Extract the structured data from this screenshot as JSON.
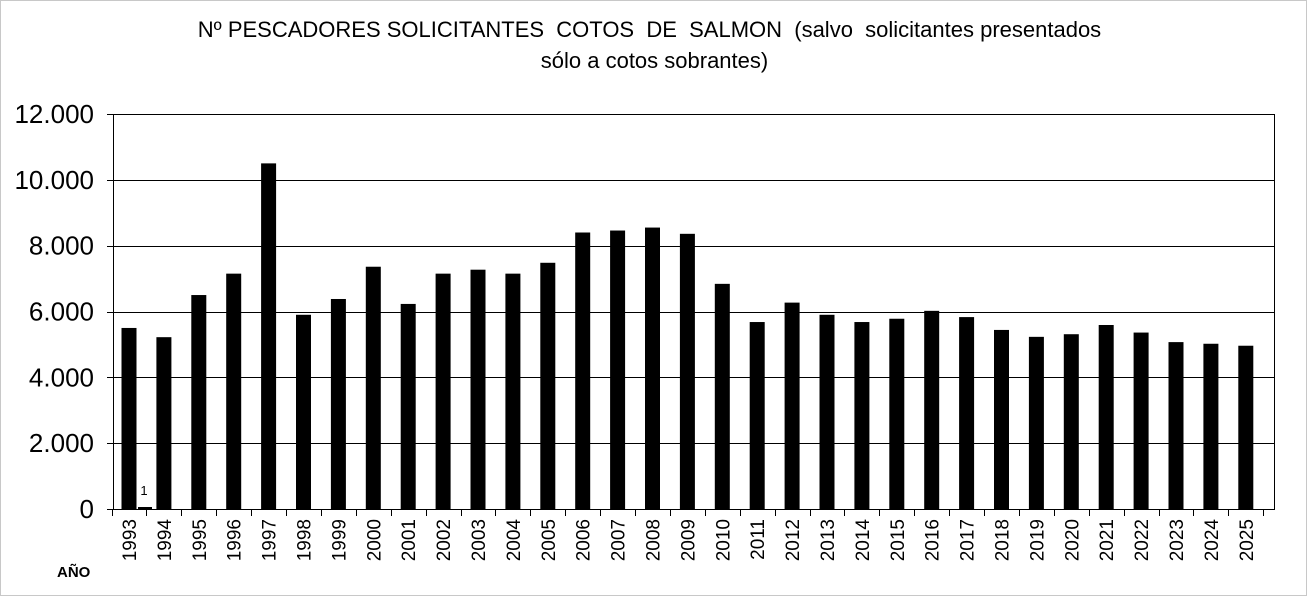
{
  "chart_data": {
    "type": "bar",
    "title_line1": "Nº PESCADORES SOLICITANTES  COTOS  DE  SALMON  (salvo  solicitantes presentados",
    "title_line2": "sólo a cotos sobrantes)",
    "xlabel": "AÑO",
    "ylabel": "",
    "ylim": [
      0,
      12000
    ],
    "y_ticks": [
      0,
      2000,
      4000,
      6000,
      8000,
      10000,
      12000
    ],
    "y_tick_labels": [
      "0",
      "2.000",
      "4.000",
      "6.000",
      "8.000",
      "10.000",
      "12.000"
    ],
    "grid": true,
    "legend": "none",
    "bar_color": "#000000",
    "categories": [
      "1993",
      "1994",
      "1995",
      "1996",
      "1997",
      "1998",
      "1999",
      "2000",
      "2001",
      "2002",
      "2003",
      "2004",
      "2005",
      "2006",
      "2007",
      "2008",
      "2009",
      "2010",
      "2011",
      "2012",
      "2013",
      "2014",
      "2015",
      "2016",
      "2017",
      "2018",
      "2019",
      "2020",
      "2021",
      "2022",
      "2023",
      "2024",
      "2025"
    ],
    "series": [
      {
        "values": [
          5500,
          5220,
          6500,
          7150,
          10500,
          5900,
          6380,
          7360,
          6230,
          7150,
          7270,
          7150,
          7480,
          8400,
          8460,
          8550,
          8360,
          6840,
          5680,
          6270,
          5900,
          5680,
          5780,
          6020,
          5830,
          5440,
          5230,
          5310,
          5590,
          5360,
          5070,
          5020,
          4960
        ]
      },
      {
        "values": [
          1,
          null,
          null,
          null,
          null,
          null,
          null,
          null,
          null,
          null,
          null,
          null,
          null,
          null,
          null,
          null,
          null,
          null,
          null,
          null,
          null,
          null,
          null,
          null,
          null,
          null,
          null,
          null,
          null,
          null,
          null,
          null,
          null
        ],
        "data_labels": [
          "1"
        ]
      }
    ]
  }
}
